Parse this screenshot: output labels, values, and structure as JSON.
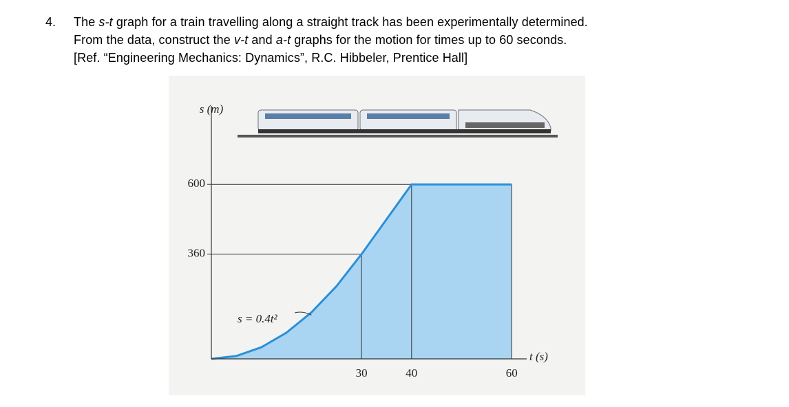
{
  "problem": {
    "number": "4.",
    "lines": [
      [
        "The ",
        "s-t",
        " graph for a train travelling along a straight track has been experimentally determined."
      ],
      [
        "From the data, construct the ",
        "v-t",
        " and ",
        "a-t",
        " graphs for the motion for times up to 60 seconds."
      ],
      [
        "[Ref. “Engineering Mechanics: Dynamics”, R.C. Hibbeler, Prentice Hall]"
      ]
    ]
  },
  "chart_data": {
    "type": "area",
    "ylabel": "s (m)",
    "xlabel": "t (s)",
    "annotation": "s = 0.4t²",
    "x": [
      0,
      5,
      10,
      15,
      20,
      25,
      30,
      40,
      60
    ],
    "values": [
      0,
      10,
      40,
      90,
      160,
      250,
      360,
      600,
      600
    ],
    "color": "#2b8fd8",
    "fill": "#a9d5f2",
    "xlim": [
      0,
      63
    ],
    "ylim": [
      0,
      870
    ],
    "xticks": [
      30,
      40,
      60
    ],
    "yticks": [
      360,
      600
    ]
  }
}
